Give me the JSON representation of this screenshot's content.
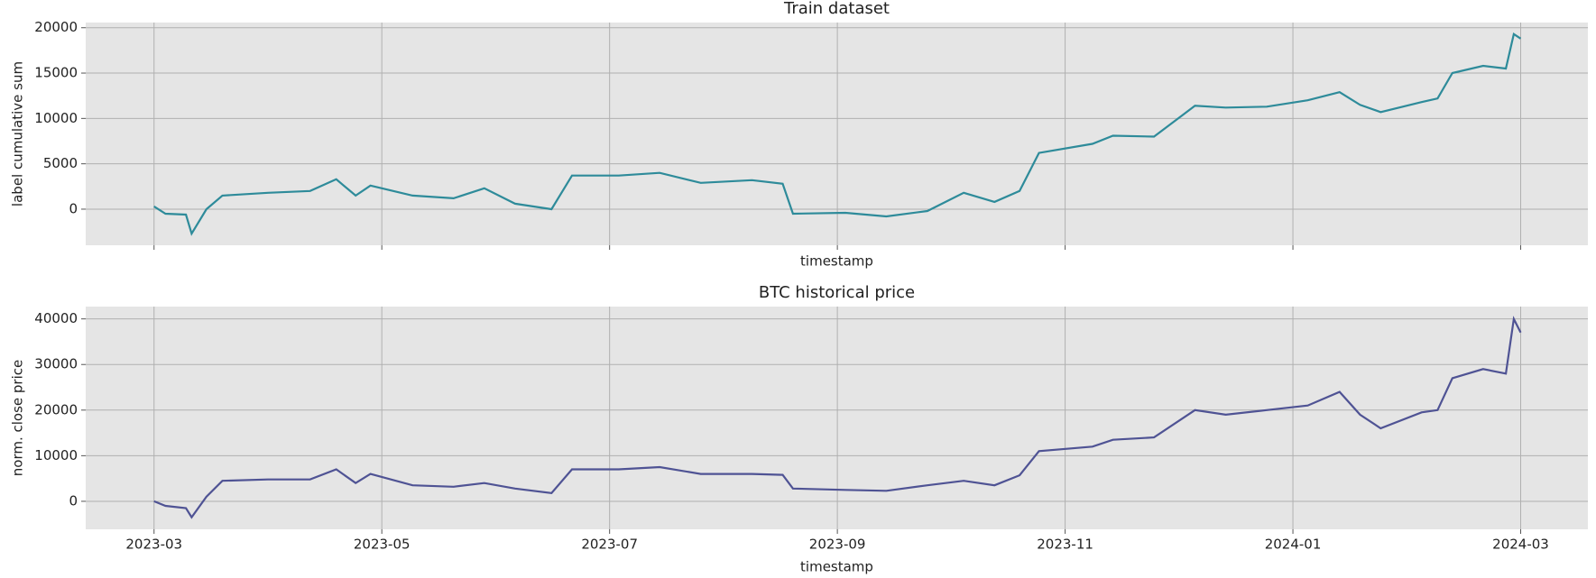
{
  "chart_data": [
    {
      "type": "line",
      "title": "Train dataset",
      "xlabel": "timestamp",
      "ylabel": "label cumulative sum",
      "x": [
        0,
        0.1,
        0.28,
        0.33,
        0.46,
        0.6,
        1.0,
        1.37,
        1.6,
        1.77,
        1.9,
        2.27,
        2.63,
        2.9,
        3.17,
        3.49,
        3.67,
        4.08,
        4.44,
        4.8,
        5.25,
        5.52,
        5.61,
        6.07,
        6.43,
        6.79,
        7.11,
        7.38,
        7.6,
        7.77,
        8.24,
        8.42,
        8.78,
        9.14,
        9.41,
        9.77,
        10.13,
        10.41,
        10.59,
        10.77,
        11.13,
        11.27,
        11.4,
        11.67,
        11.87,
        11.94,
        12.0
      ],
      "series": [
        {
          "color": "#2e8b9a",
          "values": [
            300,
            -500,
            -600,
            -2700,
            0,
            1500,
            1800,
            2000,
            3300,
            1500,
            2600,
            1500,
            1200,
            2300,
            600,
            0,
            3700,
            3700,
            4000,
            2900,
            3200,
            2800,
            -500,
            -400,
            -800,
            -200,
            1800,
            800,
            2000,
            6200,
            7200,
            8100,
            8000,
            11400,
            11200,
            11300,
            12000,
            12900,
            11500,
            10700,
            11800,
            12200,
            15000,
            15800,
            15500,
            19300,
            18800
          ]
        }
      ],
      "xlim": [
        -0.6,
        12.59
      ],
      "xticks": [
        0,
        2,
        4,
        6,
        8,
        10,
        12
      ],
      "ylim": [
        -3980,
        20570
      ],
      "yticks": [
        0,
        5000,
        10000,
        15000,
        20000
      ],
      "grid": true
    },
    {
      "type": "line",
      "title": "BTC historical price",
      "xlabel": "timestamp",
      "ylabel": "norm. close price",
      "x": [
        0,
        0.1,
        0.28,
        0.33,
        0.46,
        0.6,
        1.0,
        1.37,
        1.6,
        1.77,
        1.9,
        2.27,
        2.63,
        2.9,
        3.17,
        3.49,
        3.67,
        4.08,
        4.44,
        4.8,
        5.25,
        5.52,
        5.61,
        6.07,
        6.43,
        6.79,
        7.11,
        7.38,
        7.6,
        7.77,
        8.24,
        8.42,
        8.78,
        9.14,
        9.41,
        9.77,
        10.13,
        10.41,
        10.59,
        10.77,
        11.13,
        11.27,
        11.4,
        11.67,
        11.87,
        11.94,
        12.0
      ],
      "series": [
        {
          "color": "#4f5394",
          "values": [
            0,
            -1000,
            -1500,
            -3500,
            1000,
            4500,
            4800,
            4800,
            7000,
            4000,
            6000,
            3500,
            3200,
            4000,
            2800,
            1800,
            7000,
            7000,
            7500,
            6000,
            6000,
            5800,
            2800,
            2500,
            2300,
            3500,
            4500,
            3500,
            5700,
            11000,
            12000,
            13500,
            14000,
            20000,
            19000,
            20000,
            21000,
            24000,
            19000,
            16000,
            19500,
            20000,
            27000,
            29000,
            28000,
            40000,
            37000
          ]
        }
      ],
      "xlim": [
        -0.6,
        12.59
      ],
      "xticks": [
        {
          "value": 0,
          "label": "2023-03"
        },
        {
          "value": 2,
          "label": "2023-05"
        },
        {
          "value": 4,
          "label": "2023-07"
        },
        {
          "value": 6,
          "label": "2023-09"
        },
        {
          "value": 8,
          "label": "2023-11"
        },
        {
          "value": 10,
          "label": "2024-01"
        },
        {
          "value": 12,
          "label": "2024-03"
        }
      ],
      "ylim": [
        -6140,
        42700
      ],
      "yticks": [
        0,
        10000,
        20000,
        30000,
        40000
      ],
      "grid": true
    }
  ]
}
